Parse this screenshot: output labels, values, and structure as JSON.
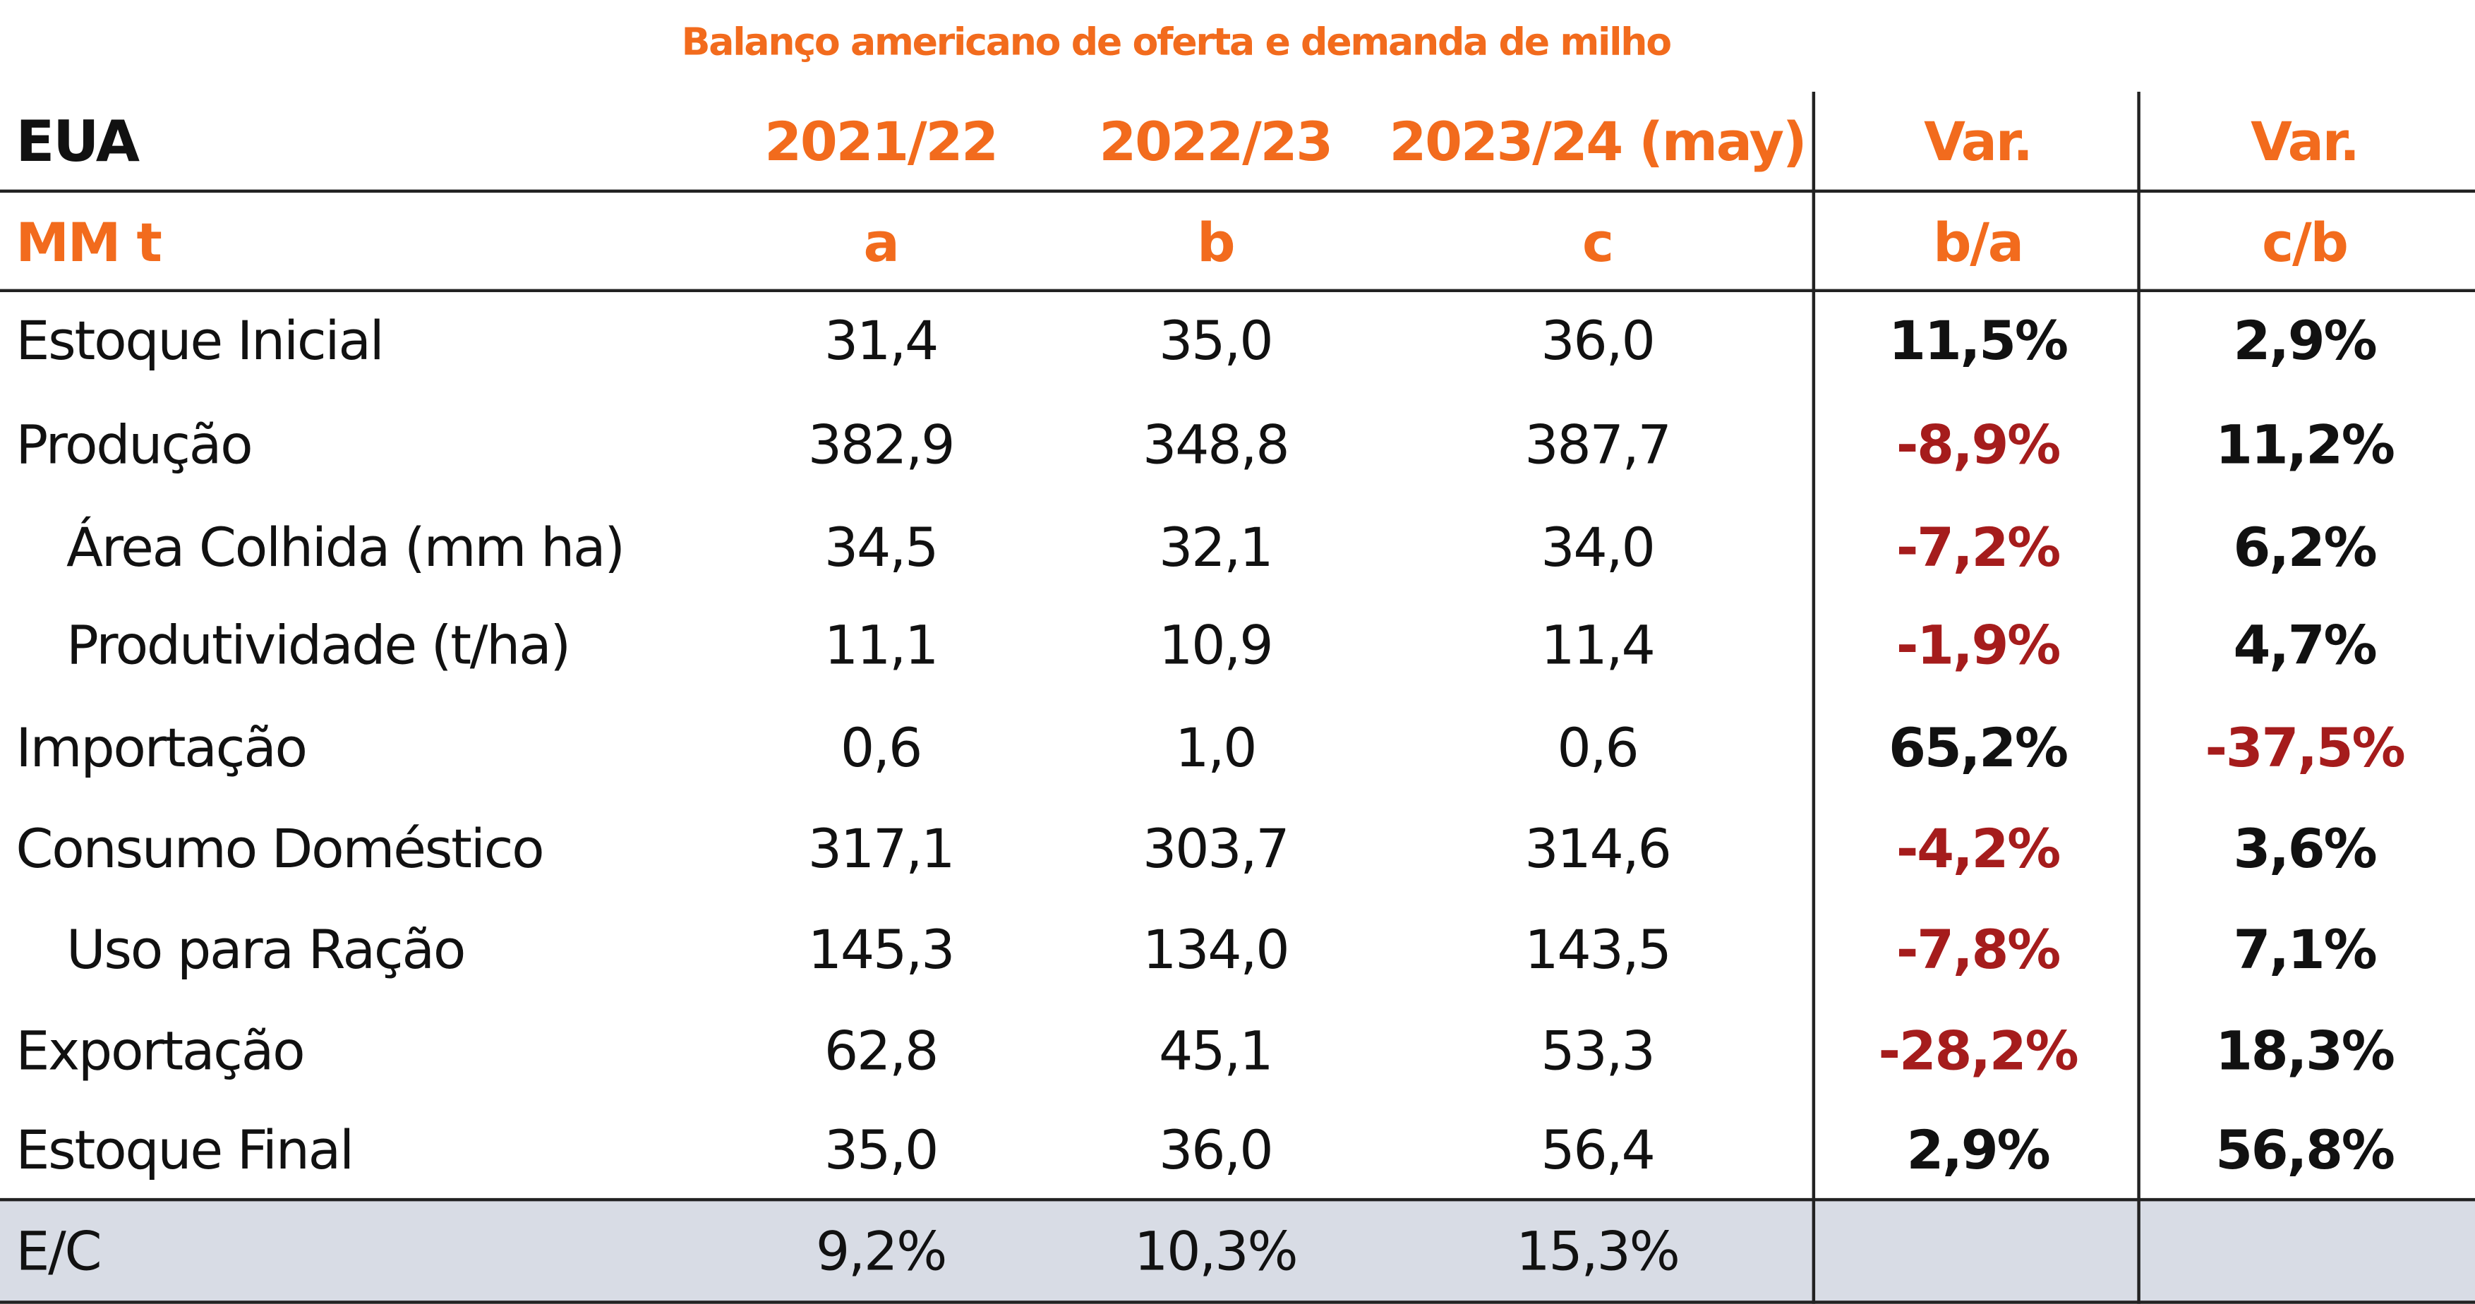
{
  "title": "Balanço americano de oferta e demanda de milho",
  "header": {
    "region": "EUA",
    "unit": "MM t",
    "columns": [
      {
        "label": "2021/22",
        "code": "a"
      },
      {
        "label": "2022/23",
        "code": "b"
      },
      {
        "label": "2023/24 (may)",
        "code": "c"
      },
      {
        "label": "Var.",
        "code": "b/a"
      },
      {
        "label": "Var.",
        "code": "c/b"
      }
    ]
  },
  "rows": [
    {
      "label": "Estoque Inicial",
      "indent": false,
      "values": [
        "31,4",
        "35,0",
        "36,0",
        "11,5%",
        "2,9%"
      ]
    },
    {
      "label": "Produção",
      "indent": false,
      "values": [
        "382,9",
        "348,8",
        "387,7",
        "-8,9%",
        "11,2%"
      ]
    },
    {
      "label": "Área Colhida (mm ha)",
      "indent": true,
      "values": [
        "34,5",
        "32,1",
        "34,0",
        "-7,2%",
        "6,2%"
      ]
    },
    {
      "label": "Produtividade (t/ha)",
      "indent": true,
      "values": [
        "11,1",
        "10,9",
        "11,4",
        "-1,9%",
        "4,7%"
      ]
    },
    {
      "label": "Importação",
      "indent": false,
      "values": [
        "0,6",
        "1,0",
        "0,6",
        "65,2%",
        "-37,5%"
      ]
    },
    {
      "label": "Consumo Doméstico",
      "indent": false,
      "values": [
        "317,1",
        "303,7",
        "314,6",
        "-4,2%",
        "3,6%"
      ]
    },
    {
      "label": "Uso para Ração",
      "indent": true,
      "values": [
        "145,3",
        "134,0",
        "143,5",
        "-7,8%",
        "7,1%"
      ]
    },
    {
      "label": "Exportação",
      "indent": false,
      "values": [
        "62,8",
        "45,1",
        "53,3",
        "-28,2%",
        "18,3%"
      ]
    },
    {
      "label": "Estoque Final",
      "indent": false,
      "values": [
        "35,0",
        "36,0",
        "56,4",
        "2,9%",
        "56,8%"
      ]
    }
  ],
  "ratio_row": {
    "label": "E/C",
    "values": [
      "9,2%",
      "10,3%",
      "15,3%"
    ]
  }
}
